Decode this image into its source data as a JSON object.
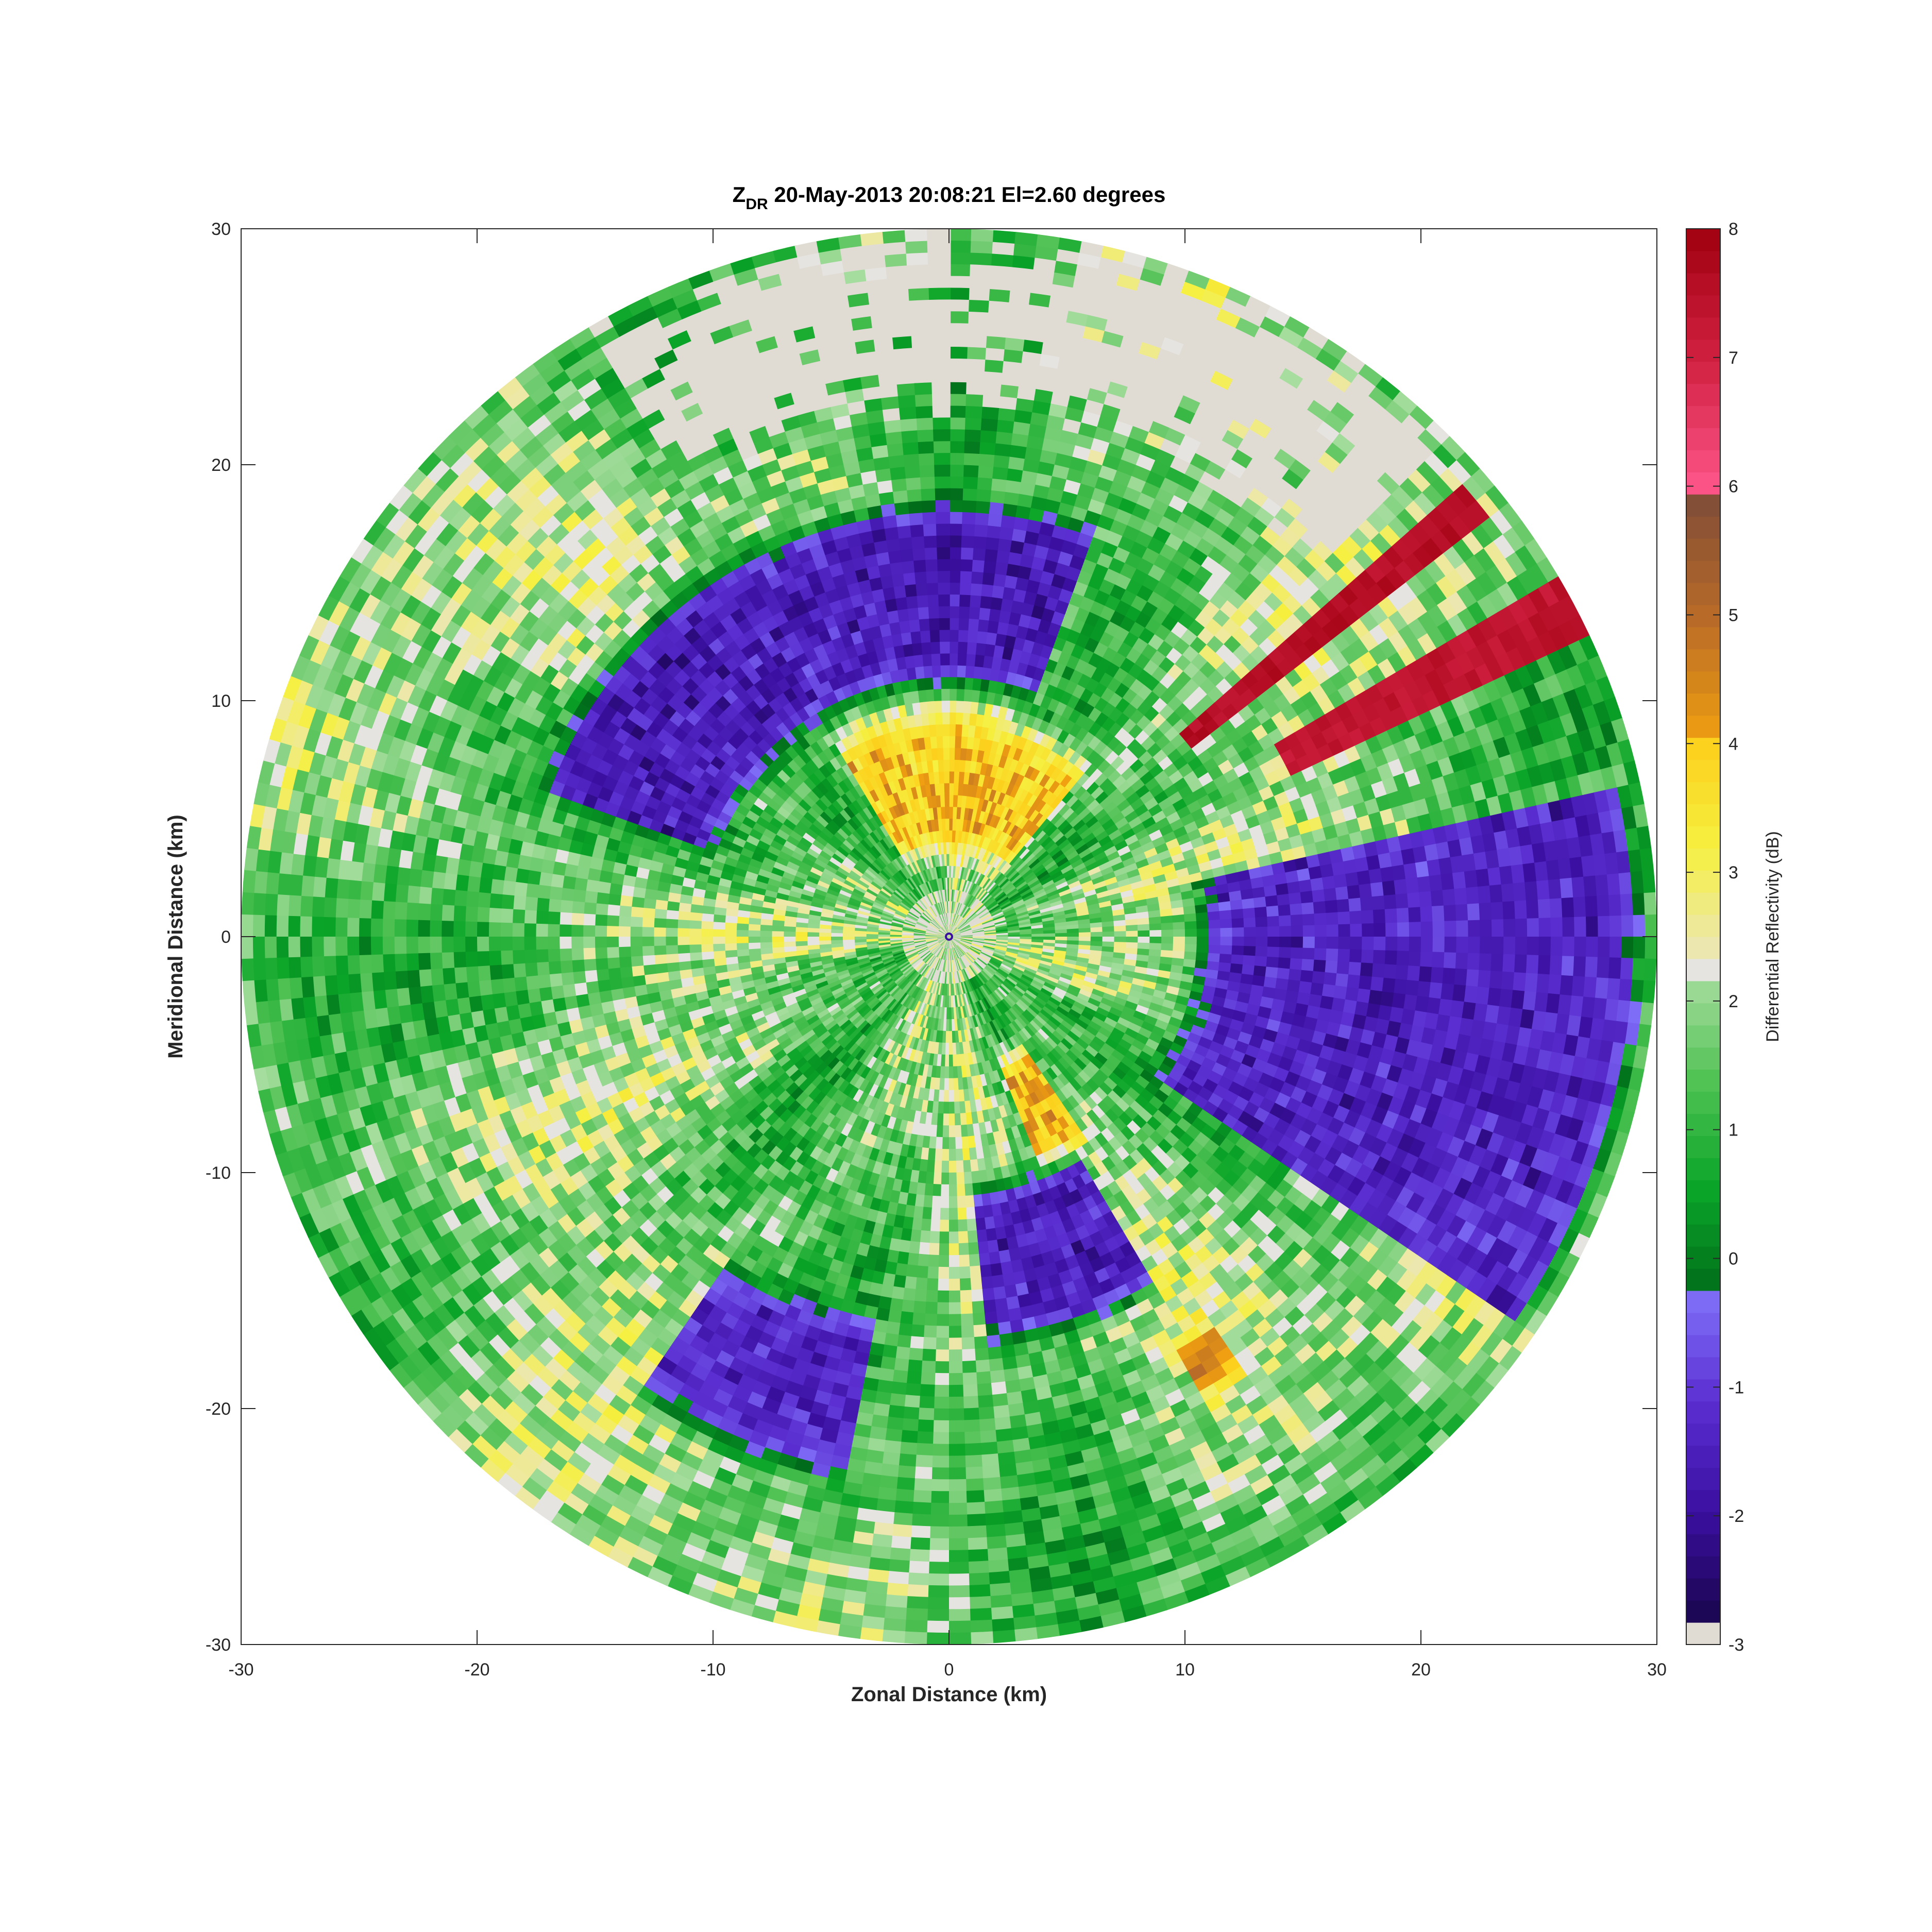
{
  "chart_data": {
    "type": "heatmap",
    "projection": "polar-ppi",
    "title": {
      "var_main": "Z",
      "var_sub": "DR",
      "rest": " 20-May-2013 20:08:21 El=2.60 degrees"
    },
    "xlabel": "Zonal Distance (km)",
    "ylabel": "Meridional Distance (km)",
    "xlim": [
      -30,
      30
    ],
    "ylim": [
      -30,
      30
    ],
    "xticks": [
      "-30",
      "-20",
      "-10",
      "0",
      "10",
      "20",
      "30"
    ],
    "yticks": [
      "30",
      "20",
      "10",
      "0",
      "-10",
      "-20",
      "-30"
    ],
    "max_range_km": 30,
    "colorbar": {
      "label": "Differential Reflectivity (dB)",
      "range": [
        -3,
        8
      ],
      "ticks": [
        "8",
        "7",
        "6",
        "5",
        "4",
        "3",
        "2",
        "1",
        "0",
        "-1",
        "-2",
        "-3"
      ],
      "segments": [
        {
          "from": -3.0,
          "to": -2.8,
          "color": "#e0dcd4"
        },
        {
          "from": -2.8,
          "to": -0.3,
          "colors": [
            "#1a0550",
            "#3a0fa0",
            "#5a2ed0",
            "#7f6ef8"
          ]
        },
        {
          "from": -0.3,
          "to": 2.2,
          "colors": [
            "#006a1a",
            "#0aa528",
            "#4fc153",
            "#a8dea0"
          ]
        },
        {
          "from": 2.2,
          "to": 2.4,
          "color": "#e6e4e0"
        },
        {
          "from": 2.4,
          "to": 4.0,
          "colors": [
            "#ece7b0",
            "#f6f040",
            "#fcd01c"
          ]
        },
        {
          "from": 4.0,
          "to": 6.0,
          "colors": [
            "#f0a010",
            "#b86a28",
            "#7a4a38"
          ]
        },
        {
          "from": 6.0,
          "to": 8.0,
          "colors": [
            "#fc5488",
            "#d02040",
            "#a00010"
          ]
        }
      ]
    },
    "field_regions": [
      {
        "kind": "no-data",
        "az_start": 330,
        "az_end": 45,
        "r_min": 22,
        "r_max": 30,
        "value": -3
      },
      {
        "kind": "strong-negative",
        "az_start": 290,
        "az_end": 20,
        "r_min": 10,
        "r_max": 19,
        "value": -2.0
      },
      {
        "kind": "negative",
        "az_start": 78,
        "az_end": 125,
        "r_min": 10,
        "r_max": 30,
        "value": -1.8
      },
      {
        "kind": "negative",
        "az_start": 150,
        "az_end": 175,
        "r_min": 10,
        "r_max": 18,
        "value": -1.9
      },
      {
        "kind": "negative",
        "az_start": 190,
        "az_end": 215,
        "r_min": 16,
        "r_max": 24,
        "value": -1.7
      },
      {
        "kind": "high-positive",
        "az_start": 49,
        "az_end": 53,
        "r_min": 13,
        "r_max": 29,
        "value": 7.8
      },
      {
        "kind": "high-positive",
        "az_start": 60,
        "az_end": 64,
        "r_min": 16,
        "r_max": 30,
        "value": 7.6
      },
      {
        "kind": "positive",
        "az_start": 330,
        "az_end": 40,
        "r_min": 3,
        "r_max": 10,
        "value": 4.2
      },
      {
        "kind": "positive",
        "az_start": 145,
        "az_end": 158,
        "r_min": 5,
        "r_max": 11,
        "value": 4.5
      },
      {
        "kind": "positive",
        "az_start": 145,
        "az_end": 152,
        "r_min": 19,
        "r_max": 23,
        "value": 4.6
      }
    ]
  }
}
